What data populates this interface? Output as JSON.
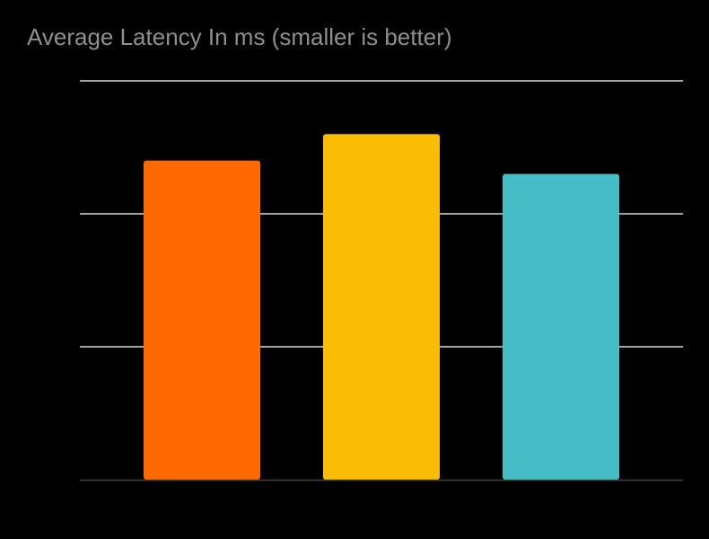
{
  "chart_data": {
    "type": "bar",
    "title": "Average Latency In ms (smaller is better)",
    "xlabel": "",
    "ylabel": "",
    "categories": [
      "",
      "",
      ""
    ],
    "values": [
      2.4,
      2.6,
      2.3
    ],
    "colors": [
      "#ff6a00",
      "#fbbc05",
      "#46bdc6"
    ],
    "ylim": [
      0,
      3
    ],
    "gridlines": [
      1,
      2,
      3
    ],
    "grid": true,
    "legend": "none"
  }
}
